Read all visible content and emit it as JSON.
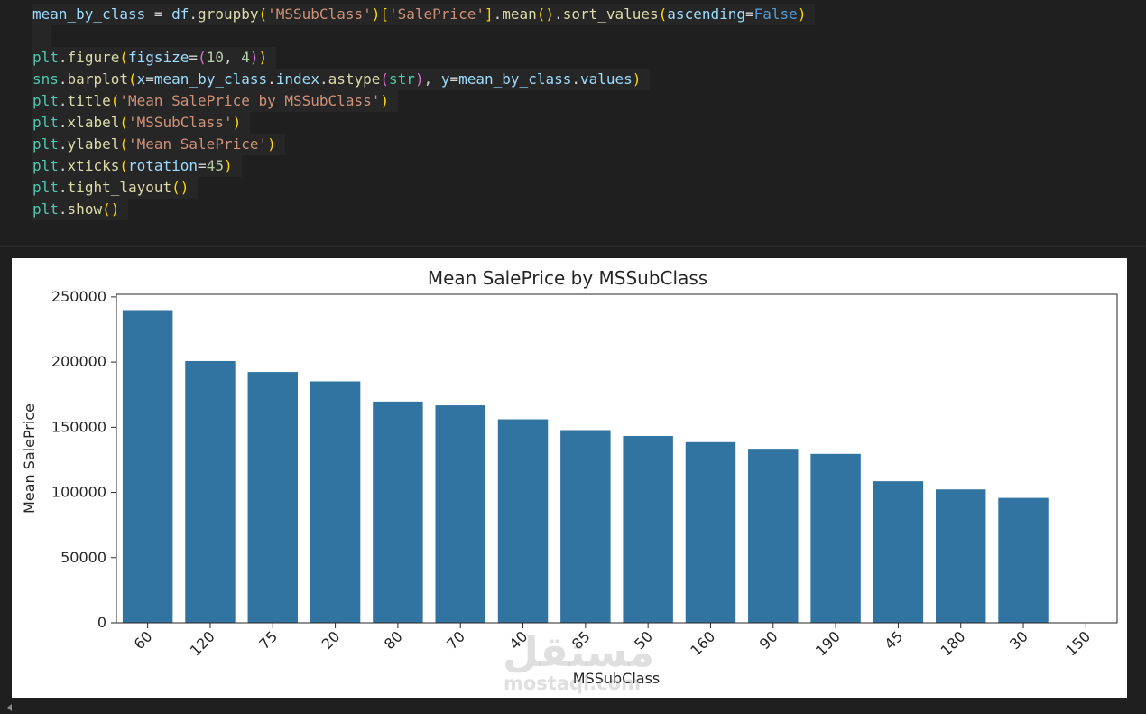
{
  "code": {
    "lines": [
      [
        [
          "tok-var",
          "mean_by_class"
        ],
        [
          "tok-op",
          " = "
        ],
        [
          "tok-var",
          "df"
        ],
        [
          "tok-op",
          "."
        ],
        [
          "tok-fn",
          "groupby"
        ],
        [
          "tok-br1",
          "("
        ],
        [
          "tok-str",
          "'MSSubClass'"
        ],
        [
          "tok-br1",
          ")"
        ],
        [
          "tok-br1",
          "["
        ],
        [
          "tok-str",
          "'SalePrice'"
        ],
        [
          "tok-br1",
          "]"
        ],
        [
          "tok-op",
          "."
        ],
        [
          "tok-fn",
          "mean"
        ],
        [
          "tok-br1",
          "()"
        ],
        [
          "tok-op",
          "."
        ],
        [
          "tok-fn",
          "sort_values"
        ],
        [
          "tok-br1",
          "("
        ],
        [
          "tok-var",
          "ascending"
        ],
        [
          "tok-op",
          "="
        ],
        [
          "tok-kw",
          "False"
        ],
        [
          "tok-br1",
          ")"
        ]
      ],
      [],
      [
        [
          "tok-builtin",
          "plt"
        ],
        [
          "tok-op",
          "."
        ],
        [
          "tok-fn",
          "figure"
        ],
        [
          "tok-br1",
          "("
        ],
        [
          "tok-var",
          "figsize"
        ],
        [
          "tok-op",
          "="
        ],
        [
          "tok-br2",
          "("
        ],
        [
          "tok-num",
          "10"
        ],
        [
          "tok-op",
          ", "
        ],
        [
          "tok-num",
          "4"
        ],
        [
          "tok-br2",
          ")"
        ],
        [
          "tok-br1",
          ")"
        ]
      ],
      [
        [
          "tok-builtin",
          "sns"
        ],
        [
          "tok-op",
          "."
        ],
        [
          "tok-fn",
          "barplot"
        ],
        [
          "tok-br1",
          "("
        ],
        [
          "tok-var",
          "x"
        ],
        [
          "tok-op",
          "="
        ],
        [
          "tok-var",
          "mean_by_class"
        ],
        [
          "tok-op",
          "."
        ],
        [
          "tok-var",
          "index"
        ],
        [
          "tok-op",
          "."
        ],
        [
          "tok-fn",
          "astype"
        ],
        [
          "tok-br2",
          "("
        ],
        [
          "tok-builtin",
          "str"
        ],
        [
          "tok-br2",
          ")"
        ],
        [
          "tok-op",
          ", "
        ],
        [
          "tok-var",
          "y"
        ],
        [
          "tok-op",
          "="
        ],
        [
          "tok-var",
          "mean_by_class"
        ],
        [
          "tok-op",
          "."
        ],
        [
          "tok-var",
          "values"
        ],
        [
          "tok-br1",
          ")"
        ]
      ],
      [
        [
          "tok-builtin",
          "plt"
        ],
        [
          "tok-op",
          "."
        ],
        [
          "tok-fn",
          "title"
        ],
        [
          "tok-br1",
          "("
        ],
        [
          "tok-str",
          "'Mean SalePrice by MSSubClass'"
        ],
        [
          "tok-br1",
          ")"
        ]
      ],
      [
        [
          "tok-builtin",
          "plt"
        ],
        [
          "tok-op",
          "."
        ],
        [
          "tok-fn",
          "xlabel"
        ],
        [
          "tok-br1",
          "("
        ],
        [
          "tok-str",
          "'MSSubClass'"
        ],
        [
          "tok-br1",
          ")"
        ]
      ],
      [
        [
          "tok-builtin",
          "plt"
        ],
        [
          "tok-op",
          "."
        ],
        [
          "tok-fn",
          "ylabel"
        ],
        [
          "tok-br1",
          "("
        ],
        [
          "tok-str",
          "'Mean SalePrice'"
        ],
        [
          "tok-br1",
          ")"
        ]
      ],
      [
        [
          "tok-builtin",
          "plt"
        ],
        [
          "tok-op",
          "."
        ],
        [
          "tok-fn",
          "xticks"
        ],
        [
          "tok-br1",
          "("
        ],
        [
          "tok-var",
          "rotation"
        ],
        [
          "tok-op",
          "="
        ],
        [
          "tok-num",
          "45"
        ],
        [
          "tok-br1",
          ")"
        ]
      ],
      [
        [
          "tok-builtin",
          "plt"
        ],
        [
          "tok-op",
          "."
        ],
        [
          "tok-fn",
          "tight_layout"
        ],
        [
          "tok-br1",
          "()"
        ]
      ],
      [
        [
          "tok-builtin",
          "plt"
        ],
        [
          "tok-op",
          "."
        ],
        [
          "tok-fn",
          "show"
        ],
        [
          "tok-br1",
          "()"
        ]
      ]
    ]
  },
  "chart_data": {
    "type": "bar",
    "title": "Mean SalePrice by MSSubClass",
    "xlabel": "MSSubClass",
    "ylabel": "Mean SalePrice",
    "categories": [
      "60",
      "120",
      "75",
      "20",
      "80",
      "70",
      "40",
      "85",
      "50",
      "160",
      "90",
      "190",
      "45",
      "180",
      "30",
      "150"
    ],
    "values": [
      239900,
      200800,
      192400,
      185200,
      169700,
      166800,
      156100,
      147800,
      143300,
      138600,
      133500,
      129600,
      108600,
      102300,
      95800,
      0
    ],
    "ylim": [
      0,
      252000
    ],
    "yticks": [
      0,
      50000,
      100000,
      150000,
      200000,
      250000
    ],
    "tick_rotation": 45,
    "grid": false,
    "bar_color": "#3274a1"
  },
  "watermark": {
    "main": "مستقل",
    "sub": "mostaql.com"
  }
}
